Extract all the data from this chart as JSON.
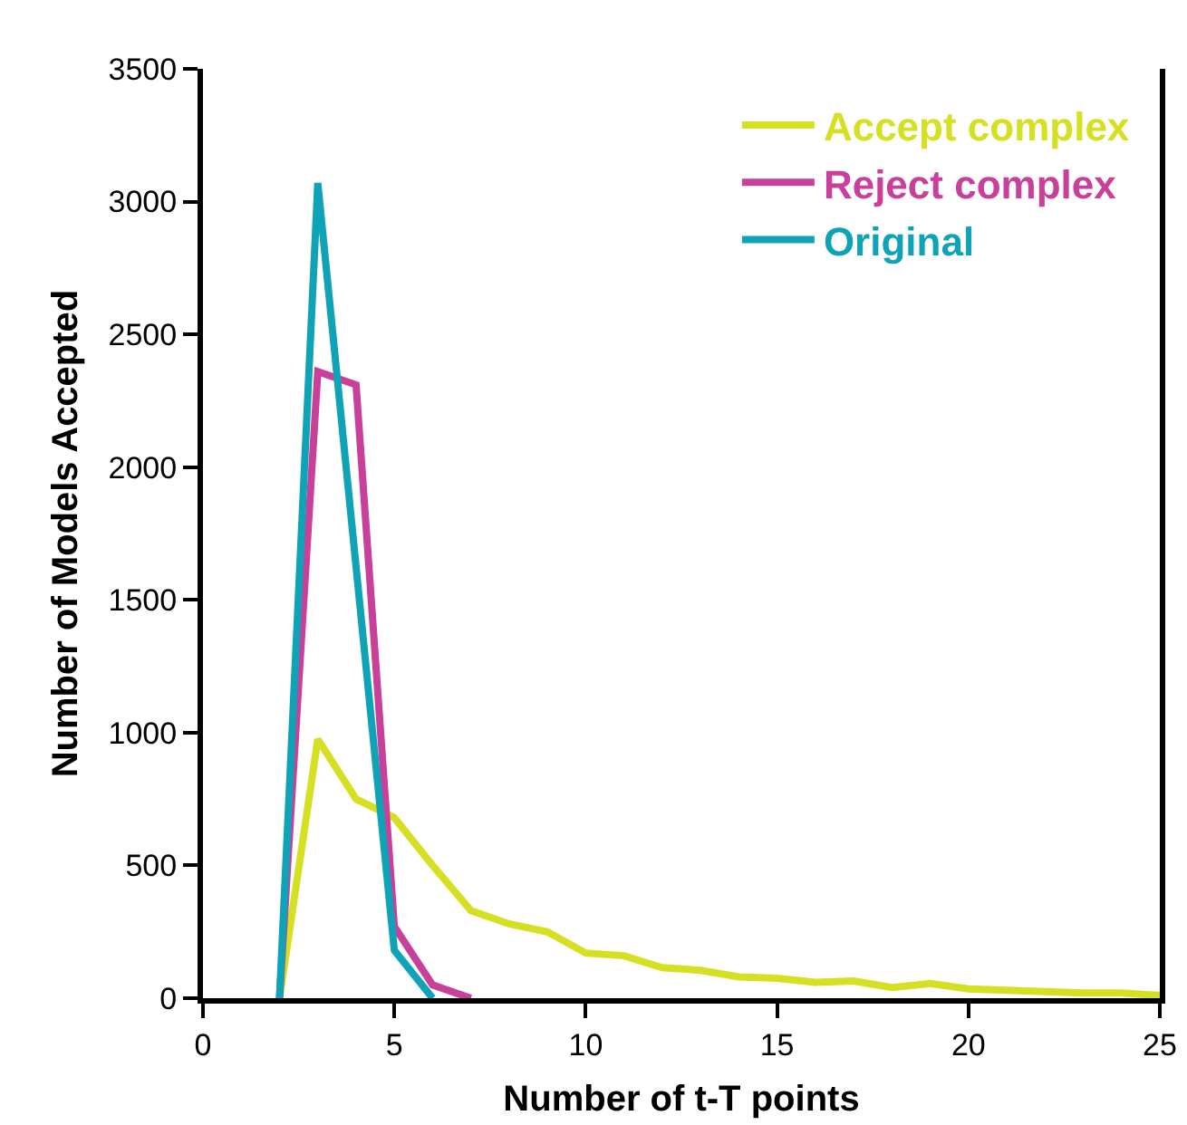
{
  "chart_data": {
    "type": "line",
    "xlabel": "Number of t-T points",
    "ylabel": "Number of Models Accepted",
    "xlim": [
      0,
      25
    ],
    "xticks": [
      0,
      5,
      10,
      15,
      20,
      25
    ],
    "ylim": [
      0,
      3500
    ],
    "yticks": [
      0,
      500,
      1000,
      1500,
      2000,
      2500,
      3000,
      3500
    ],
    "grid": false,
    "legend": "top right",
    "marker": "none",
    "line_style": "solid",
    "series": [
      {
        "name": "Accept complex",
        "color": "#d4e021",
        "x": [
          2,
          3,
          4,
          5,
          6,
          7,
          8,
          9,
          10,
          11,
          12,
          13,
          14,
          15,
          16,
          17,
          18,
          19,
          20,
          21,
          22,
          23,
          24,
          25
        ],
        "values": [
          0,
          975,
          750,
          680,
          500,
          330,
          280,
          250,
          170,
          160,
          115,
          105,
          80,
          75,
          60,
          65,
          40,
          55,
          35,
          30,
          25,
          20,
          20,
          10
        ]
      },
      {
        "name": "Reject complex",
        "color": "#c8409a",
        "x": [
          2,
          3,
          4,
          5,
          6,
          7
        ],
        "values": [
          0,
          2360,
          2310,
          270,
          50,
          0
        ]
      },
      {
        "name": "Original",
        "color": "#0fa3b8",
        "x": [
          2,
          3,
          5,
          6
        ],
        "values": [
          0,
          3070,
          180,
          0
        ]
      }
    ]
  }
}
